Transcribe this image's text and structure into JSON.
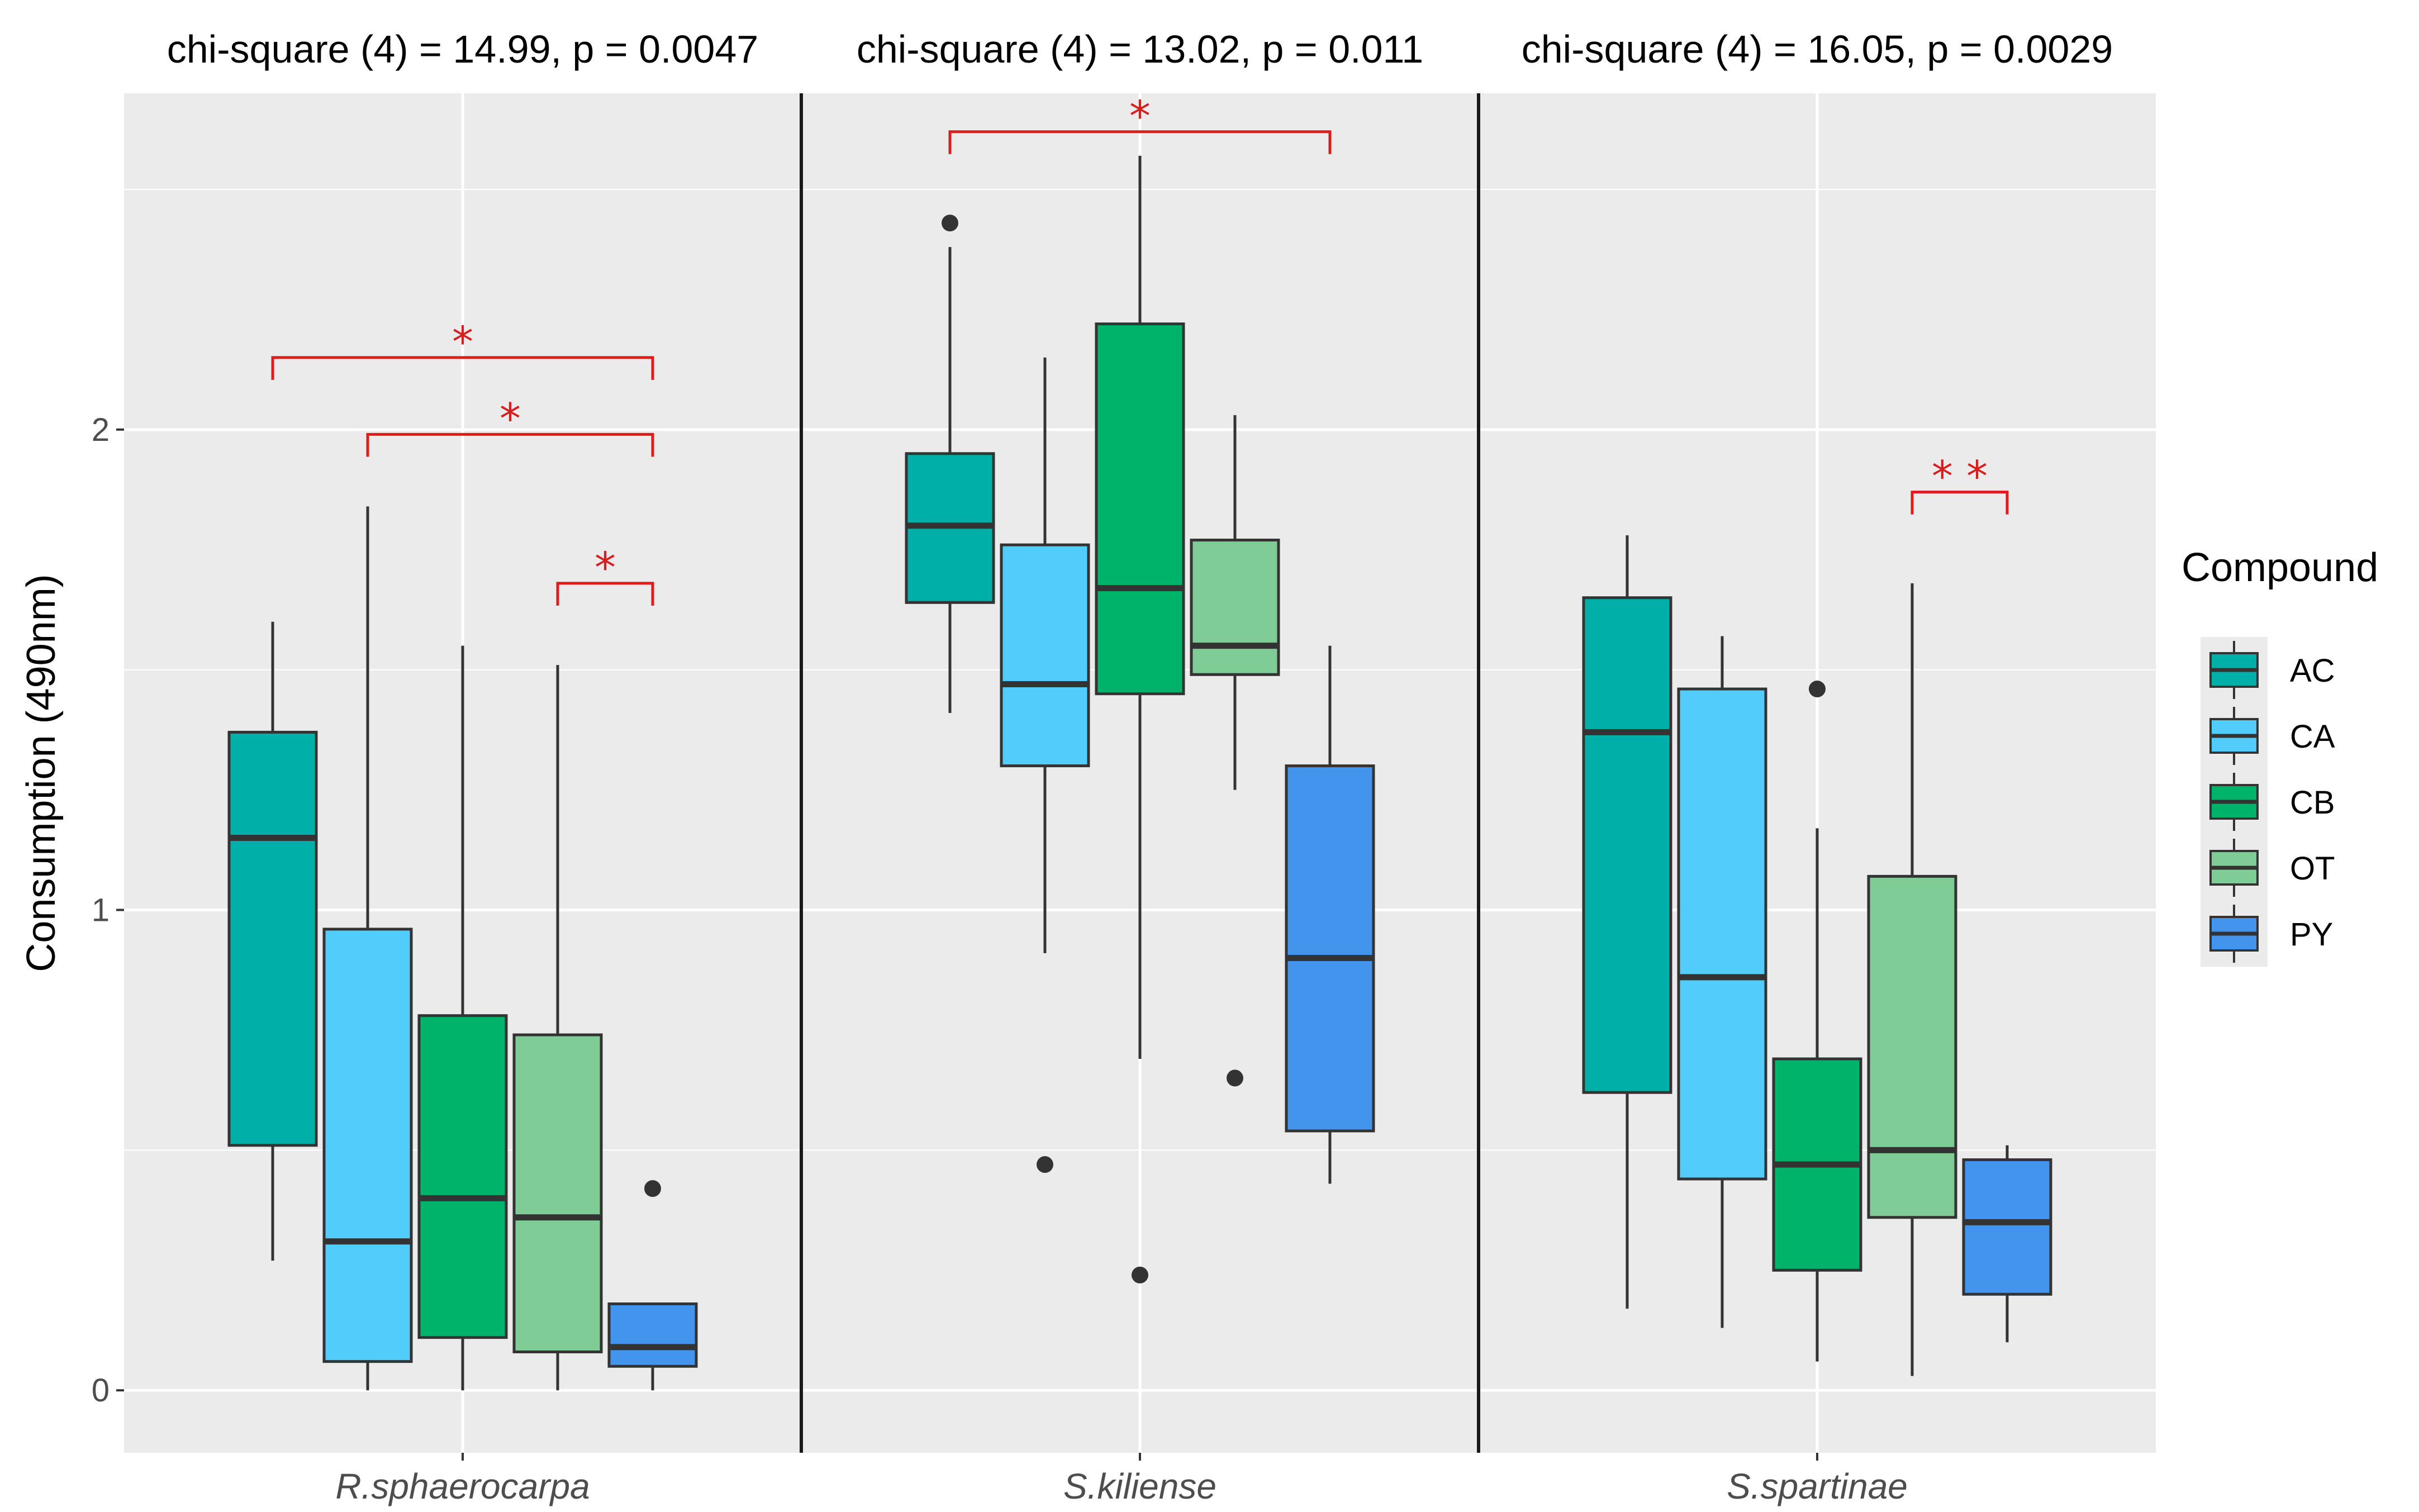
{
  "chart_data": {
    "type": "box",
    "ylabel": "Consumption (490nm)",
    "xlabel": "",
    "ylim": [
      -0.13,
      2.7
    ],
    "y_ticks": [
      0,
      1,
      2
    ],
    "grid": true,
    "legend": {
      "title": "Compound",
      "position": "right"
    },
    "series": [
      {
        "name": "AC",
        "color": "#00b0a8"
      },
      {
        "name": "CA",
        "color": "#52ccfa"
      },
      {
        "name": "CB",
        "color": "#00b36b"
      },
      {
        "name": "OT",
        "color": "#80cc96"
      },
      {
        "name": "PY",
        "color": "#4294ec"
      }
    ],
    "categories": [
      {
        "name": "R.sphaerocarpa",
        "stat": "chi-square (4) = 14.99, p = 0.0047",
        "boxes": [
          {
            "compound": "AC",
            "min": 0.27,
            "q1": 0.51,
            "median": 1.15,
            "q3": 1.37,
            "max": 1.6,
            "outliers": []
          },
          {
            "compound": "CA",
            "min": 0.0,
            "q1": 0.06,
            "median": 0.31,
            "q3": 0.96,
            "max": 1.84,
            "outliers": []
          },
          {
            "compound": "CB",
            "min": 0.0,
            "q1": 0.11,
            "median": 0.4,
            "q3": 0.78,
            "max": 1.55,
            "outliers": []
          },
          {
            "compound": "OT",
            "min": 0.0,
            "q1": 0.08,
            "median": 0.36,
            "q3": 0.74,
            "max": 1.51,
            "outliers": []
          },
          {
            "compound": "PY",
            "min": 0.0,
            "q1": 0.05,
            "median": 0.09,
            "q3": 0.18,
            "max": 0.18,
            "outliers": [
              0.42
            ]
          }
        ],
        "significance": [
          {
            "from": "AC",
            "to": "PY",
            "label": "*",
            "y": 2.15
          },
          {
            "from": "CA",
            "to": "PY",
            "label": "*",
            "y": 1.99
          },
          {
            "from": "OT",
            "to": "PY",
            "label": "*",
            "y": 1.68
          }
        ]
      },
      {
        "name": "S.kiliense",
        "stat": "chi-square (4) = 13.02, p = 0.011",
        "boxes": [
          {
            "compound": "AC",
            "min": 1.41,
            "q1": 1.64,
            "median": 1.8,
            "q3": 1.95,
            "max": 2.38,
            "outliers": [
              2.43
            ]
          },
          {
            "compound": "CA",
            "min": 0.91,
            "q1": 1.3,
            "median": 1.47,
            "q3": 1.76,
            "max": 2.15,
            "outliers": [
              0.47
            ]
          },
          {
            "compound": "CB",
            "min": 0.69,
            "q1": 1.45,
            "median": 1.67,
            "q3": 2.22,
            "max": 2.57,
            "outliers": [
              0.24
            ]
          },
          {
            "compound": "OT",
            "min": 1.25,
            "q1": 1.49,
            "median": 1.55,
            "q3": 1.77,
            "max": 2.03,
            "outliers": [
              0.65
            ]
          },
          {
            "compound": "PY",
            "min": 0.43,
            "q1": 0.54,
            "median": 0.9,
            "q3": 1.3,
            "max": 1.55,
            "outliers": []
          }
        ],
        "significance": [
          {
            "from": "AC",
            "to": "PY",
            "label": "*",
            "y": 2.62
          }
        ]
      },
      {
        "name": "S.spartinae",
        "stat": "chi-square (4) = 16.05, p = 0.0029",
        "boxes": [
          {
            "compound": "AC",
            "min": 0.17,
            "q1": 0.62,
            "median": 1.37,
            "q3": 1.65,
            "max": 1.78,
            "outliers": []
          },
          {
            "compound": "CA",
            "min": 0.13,
            "q1": 0.44,
            "median": 0.86,
            "q3": 1.46,
            "max": 1.57,
            "outliers": []
          },
          {
            "compound": "CB",
            "min": 0.06,
            "q1": 0.25,
            "median": 0.47,
            "q3": 0.69,
            "max": 1.17,
            "outliers": [
              1.46
            ]
          },
          {
            "compound": "OT",
            "min": 0.03,
            "q1": 0.36,
            "median": 0.5,
            "q3": 1.07,
            "max": 1.68,
            "outliers": []
          },
          {
            "compound": "PY",
            "min": 0.1,
            "q1": 0.2,
            "median": 0.35,
            "q3": 0.48,
            "max": 0.51,
            "outliers": []
          }
        ],
        "significance": [
          {
            "from": "OT",
            "to": "PY",
            "label": "**",
            "y": 1.87
          }
        ]
      }
    ]
  }
}
